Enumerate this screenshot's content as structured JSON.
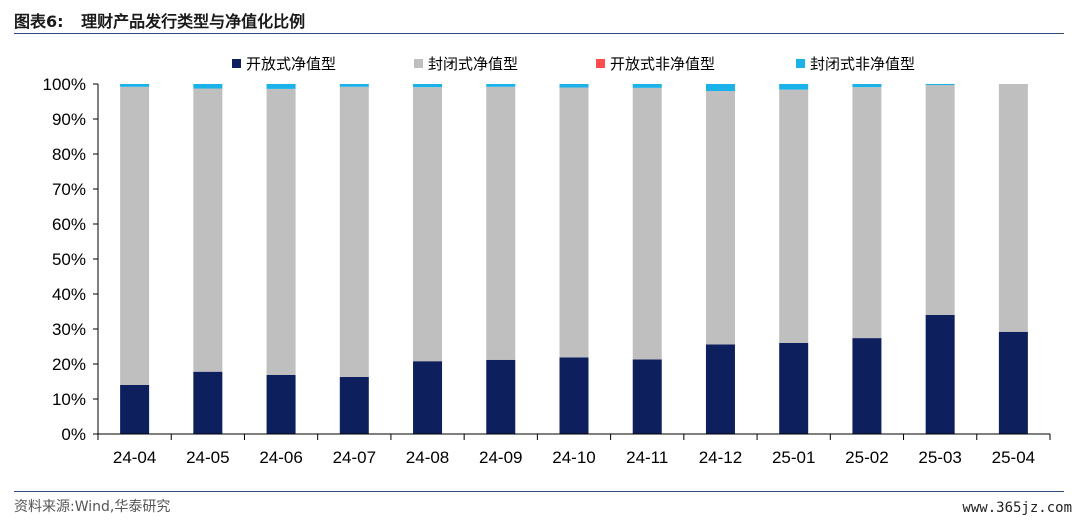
{
  "header": {
    "figure_label": "图表6:",
    "title": "理财产品发行类型与净值化比例"
  },
  "footer": {
    "source": "资料来源:Wind,华泰研究",
    "watermark": "www.365jz.com"
  },
  "colors": {
    "open_nav": "#0d1f5c",
    "closed_nav": "#bfbfbf",
    "open_non_nav": "#ff4d4d",
    "closed_non_nav": "#1ab2e8",
    "axis": "#000000",
    "rule": "#2c4a80"
  },
  "chart_data": {
    "type": "bar",
    "stacked": true,
    "title": "",
    "xlabel": "",
    "ylabel": "",
    "ylim": [
      0,
      100
    ],
    "yticks": [
      "0%",
      "10%",
      "20%",
      "30%",
      "40%",
      "50%",
      "60%",
      "70%",
      "80%",
      "90%",
      "100%"
    ],
    "legend_position": "top",
    "categories": [
      "24-04",
      "24-05",
      "24-06",
      "24-07",
      "24-08",
      "24-09",
      "24-10",
      "24-11",
      "24-12",
      "25-01",
      "25-02",
      "25-03",
      "25-04"
    ],
    "series": [
      {
        "name": "开放式净值型",
        "color": "#0d1f5c",
        "values": [
          14.0,
          17.8,
          16.9,
          16.3,
          20.8,
          21.2,
          21.9,
          21.3,
          25.6,
          26.0,
          27.4,
          34.0,
          29.2
        ]
      },
      {
        "name": "封闭式净值型",
        "color": "#bfbfbf",
        "values": [
          85.2,
          80.9,
          81.7,
          82.9,
          78.3,
          78.0,
          77.1,
          77.6,
          72.4,
          72.4,
          71.7,
          65.7,
          70.8
        ]
      },
      {
        "name": "开放式非净值型",
        "color": "#ff4d4d",
        "values": [
          0,
          0,
          0,
          0,
          0,
          0,
          0,
          0,
          0,
          0,
          0,
          0,
          0
        ]
      },
      {
        "name": "封闭式非净值型",
        "color": "#1ab2e8",
        "values": [
          0.8,
          1.3,
          1.4,
          0.8,
          0.9,
          0.8,
          1.0,
          1.1,
          2.0,
          1.6,
          0.9,
          0.3,
          0.0
        ]
      }
    ]
  }
}
